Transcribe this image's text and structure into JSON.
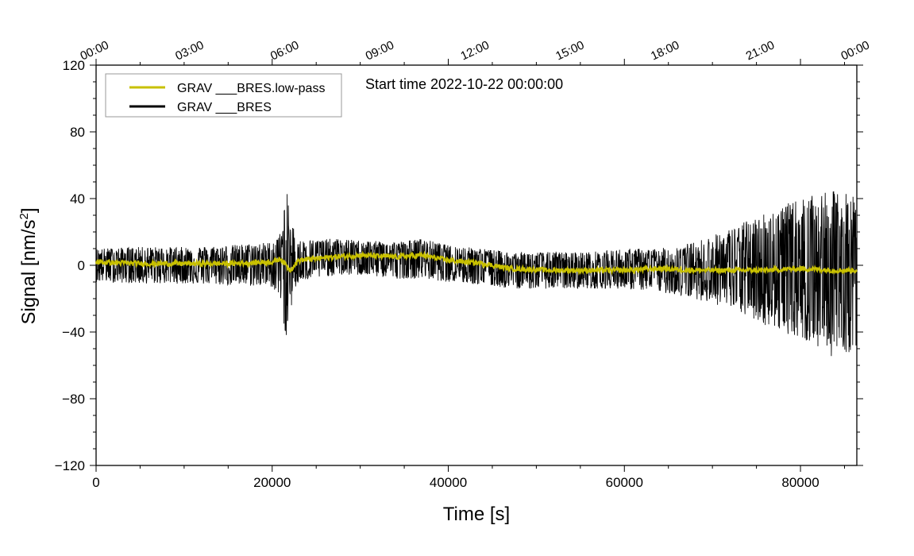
{
  "chart_data": {
    "type": "line",
    "title": "",
    "annotation": "Start time 2022-10-22 00:00:00",
    "xlabel": "Time [s]",
    "ylabel_main": "Signal [nm/s",
    "ylabel_sup": "2",
    "ylabel_end": "]",
    "xlim": [
      0,
      86400
    ],
    "ylim": [
      -120,
      120
    ],
    "x_ticks": [
      0,
      20000,
      40000,
      60000,
      80000
    ],
    "x_tick_labels": [
      "0",
      "20000",
      "40000",
      "60000",
      "80000"
    ],
    "y_ticks": [
      -120,
      -80,
      -40,
      0,
      40,
      80,
      120
    ],
    "y_tick_labels": [
      "−120",
      "−80",
      "−40",
      "0",
      "40",
      "80",
      "120"
    ],
    "top_axis_ticks": [
      0,
      10800,
      21600,
      32400,
      43200,
      54000,
      64800,
      75600,
      86400
    ],
    "top_axis_labels": [
      "00:00",
      "03:00",
      "06:00",
      "09:00",
      "12:00",
      "15:00",
      "18:00",
      "21:00",
      "00:00"
    ],
    "grid": false,
    "legend_position": "top-left",
    "series": [
      {
        "name": "GRAV ___BRES",
        "color": "#000000",
        "x": [
          0,
          5000,
          10000,
          15000,
          20000,
          21000,
          21600,
          22000,
          23000,
          27000,
          30000,
          34000,
          37000,
          40000,
          44000,
          47000,
          52000,
          56000,
          60000,
          64000,
          68000,
          72000,
          76000,
          80000,
          84000,
          86400
        ],
        "envelope_upper": [
          10,
          11,
          11,
          12,
          14,
          20,
          47,
          30,
          15,
          16,
          15,
          14,
          16,
          12,
          10,
          8,
          8,
          8,
          10,
          10,
          14,
          22,
          32,
          40,
          45,
          42
        ],
        "envelope_lower": [
          -10,
          -11,
          -11,
          -12,
          -13,
          -22,
          -46,
          -28,
          -10,
          -6,
          -6,
          -8,
          -8,
          -10,
          -12,
          -14,
          -14,
          -14,
          -14,
          -16,
          -20,
          -26,
          -36,
          -44,
          -56,
          -50
        ]
      },
      {
        "name": "GRAV ___BRES.low-pass",
        "color": "#c8c000",
        "x": [
          0,
          5000,
          10000,
          15000,
          20000,
          21000,
          21600,
          22000,
          23000,
          27000,
          30000,
          34000,
          37000,
          40000,
          44000,
          47000,
          52000,
          56000,
          60000,
          64000,
          68000,
          72000,
          76000,
          80000,
          84000,
          86400
        ],
        "y": [
          2,
          1,
          1,
          1,
          2,
          4,
          0,
          -3,
          3,
          5,
          6,
          5,
          6,
          3,
          1,
          -2,
          -3,
          -3,
          -3,
          -2,
          -3,
          -3,
          -3,
          -2,
          -3,
          -3
        ]
      }
    ]
  }
}
